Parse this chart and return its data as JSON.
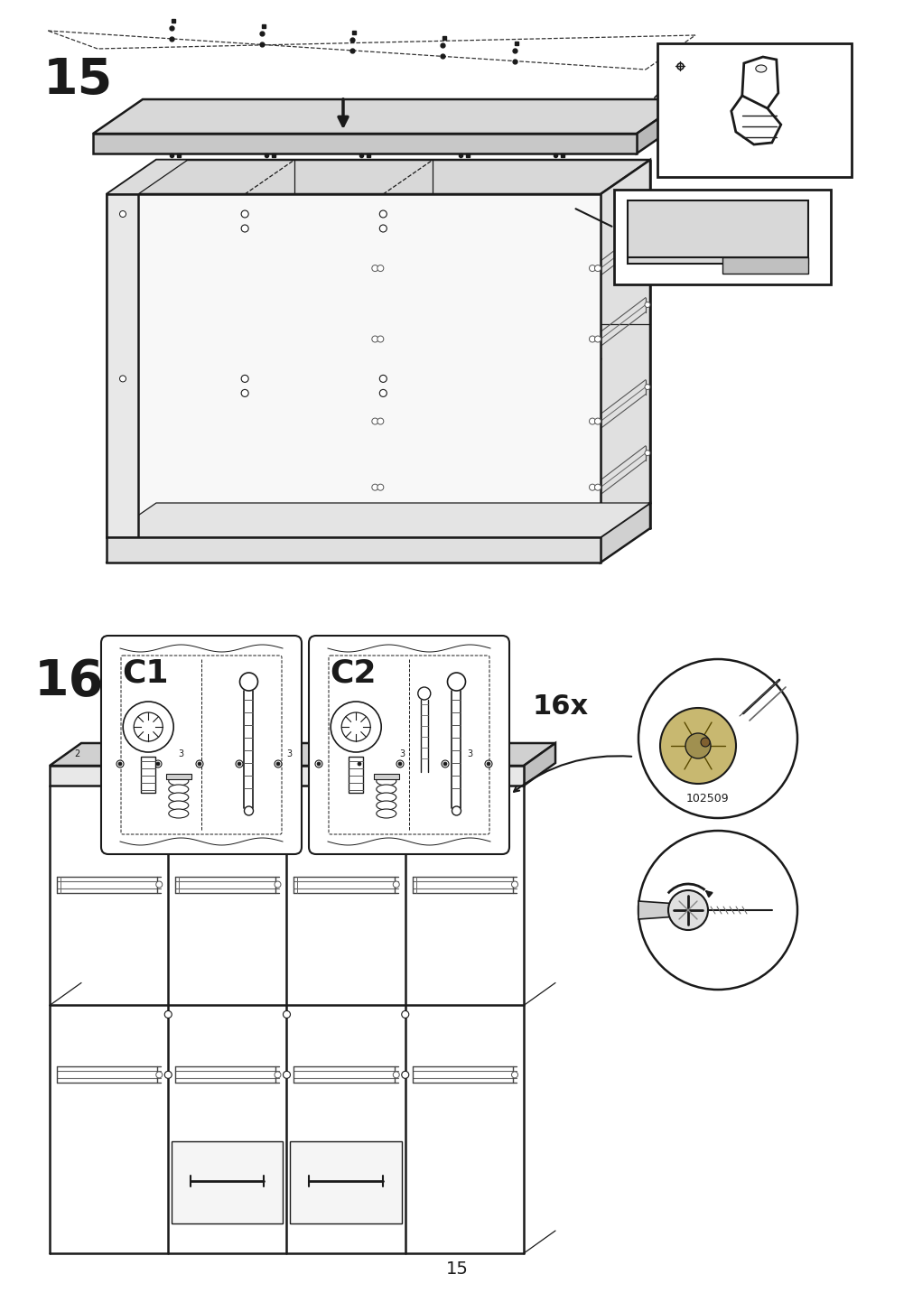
{
  "page_number": "15",
  "step15_label": "15",
  "step16_label": "16",
  "bg_color": "#ffffff",
  "line_color": "#1a1a1a",
  "gray_fill": "#d8d8d8",
  "light_fill": "#eeeeee",
  "c1_label": "C1",
  "c2_label": "C2",
  "quantity_label": "16x",
  "part_number": "102509",
  "fig_width": 10.12,
  "fig_height": 14.32
}
